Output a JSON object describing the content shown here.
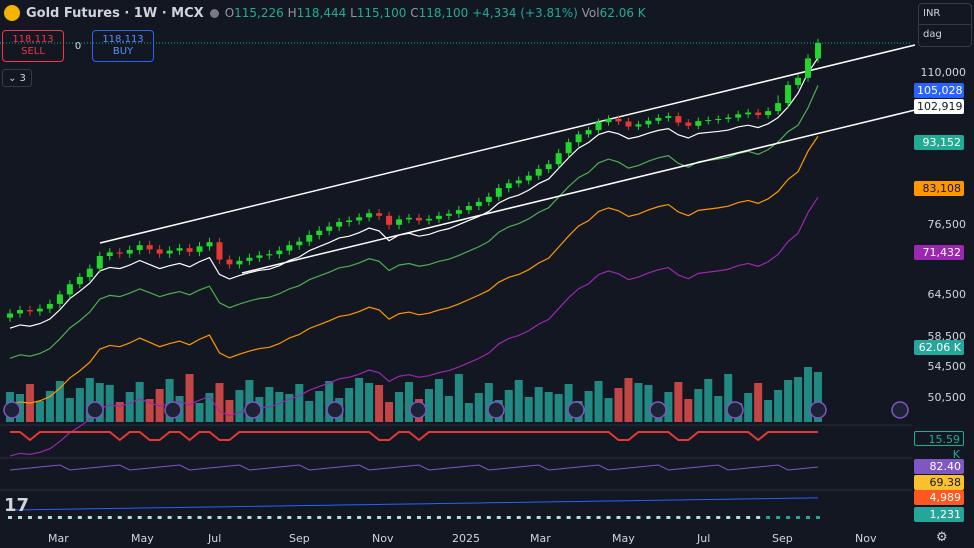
{
  "header": {
    "symbol": "Gold Futures · 1W · MCX",
    "open_label": "O",
    "open": "115,226",
    "high_label": "H",
    "high": "118,444",
    "low_label": "L",
    "low": "115,100",
    "close_label": "C",
    "close": "118,100",
    "change": "+4,334 (+3.81%)",
    "volume_label": "Vol",
    "volume": "62.06 K"
  },
  "trade": {
    "sell_price": "118,113",
    "sell_label": "SELL",
    "spread": "0",
    "buy_price": "118,113",
    "buy_label": "BUY"
  },
  "collapse": {
    "chevron": "⌄",
    "count": "3"
  },
  "currency": {
    "value": "INR",
    "unit": "dag"
  },
  "price_axis": [
    "110,000",
    "76,500",
    "64,500",
    "58,500",
    "54,500",
    "50,500"
  ],
  "price_tags": [
    {
      "text": "105,028",
      "color": "#2962ff",
      "fg": "#ffffff"
    },
    {
      "text": "102,919",
      "color": "#ffffff",
      "fg": "#131722"
    },
    {
      "text": "93,152",
      "color": "#22ab94",
      "fg": "#ffffff"
    },
    {
      "text": "83,108",
      "color": "#ff9800",
      "fg": "#131722"
    },
    {
      "text": "71,432",
      "color": "#9c27b0",
      "fg": "#ffffff"
    },
    {
      "text": "62.06 K",
      "color": "#26a69a",
      "fg": "#ffffff"
    },
    {
      "text": "15.59 K",
      "color": "#131722",
      "fg": "#22ab94"
    },
    {
      "text": "82.40",
      "color": "#7e57c2",
      "fg": "#ffffff"
    },
    {
      "text": "69.38",
      "color": "#fbc02d",
      "fg": "#131722"
    },
    {
      "text": "4,989",
      "color": "#ff5722",
      "fg": "#ffffff"
    },
    {
      "text": "1,231",
      "color": "#26a69a",
      "fg": "#ffffff"
    }
  ],
  "time_axis": [
    "Mar",
    "May",
    "Jul",
    "Sep",
    "Nov",
    "2025",
    "Mar",
    "May",
    "Jul",
    "Sep",
    "Nov"
  ],
  "logo": "17",
  "settings_icon": "gear-icon",
  "colors": {
    "up": "#22d62e",
    "down": "#e53935",
    "vol_up": "#26a69a",
    "vol_down": "#ef5350",
    "bg": "#131722"
  },
  "chart_data": {
    "type": "candlestick",
    "title": "Gold Futures · 1W · MCX",
    "x_start": "2024-02",
    "x_end": "2025-09",
    "ylim": [
      47000,
      124000
    ],
    "closes": [
      61800,
      62300,
      62100,
      62500,
      63200,
      64600,
      66300,
      67500,
      68900,
      71000,
      71600,
      71400,
      72000,
      72800,
      72100,
      71400,
      71900,
      72300,
      71700,
      72600,
      73300,
      70400,
      69600,
      70200,
      70700,
      71100,
      71300,
      71900,
      72800,
      73400,
      74500,
      75200,
      75900,
      76700,
      77000,
      77600,
      78400,
      77900,
      76200,
      77200,
      77500,
      77000,
      77300,
      77900,
      78300,
      79000,
      79800,
      80600,
      81600,
      83300,
      84300,
      84900,
      85900,
      87300,
      88300,
      90600,
      92900,
      95000,
      96200,
      98400,
      99300,
      98600,
      97200,
      97800,
      98800,
      99600,
      100100,
      98300,
      97400,
      98700,
      99000,
      99300,
      99700,
      100600,
      101100,
      100400,
      101500,
      103300,
      106400,
      108400,
      113800,
      118100
    ],
    "up_volume_sample": [
      62.06
    ],
    "overlays": [
      "SMA 20 (white)",
      "SMA 50 (green)",
      "SMA 100 (orange)",
      "SMA 200 (purple)",
      "parallel channel"
    ],
    "levels": {
      "sma_blue": 105028,
      "sma_white": 102919,
      "sma_green": 93152,
      "sma_orange": 83108,
      "sma_purple": 71432
    }
  }
}
